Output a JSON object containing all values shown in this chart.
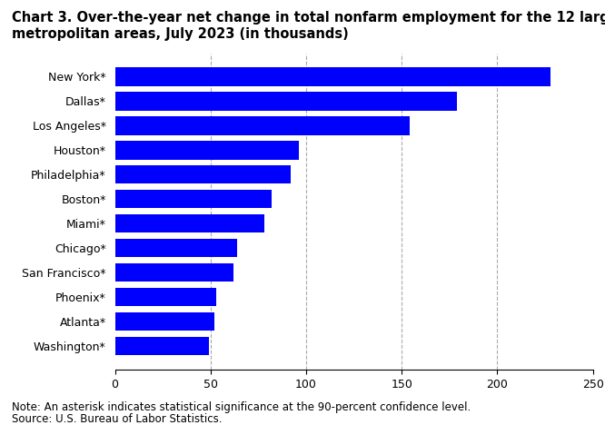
{
  "title_line1": "Chart 3. Over-the-year net change in total nonfarm employment for the 12 largest",
  "title_line2": "metropolitan areas, July 2023 (in thousands)",
  "categories": [
    "Washington*",
    "Atlanta*",
    "Phoenix*",
    "San Francisco*",
    "Chicago*",
    "Miami*",
    "Boston*",
    "Philadelphia*",
    "Houston*",
    "Los Angeles*",
    "Dallas*",
    "New York*"
  ],
  "values": [
    49,
    52,
    53,
    62,
    64,
    78,
    82,
    92,
    96,
    154,
    179,
    228
  ],
  "bar_color": "#0000ff",
  "xlim": [
    0,
    250
  ],
  "xticks": [
    0,
    50,
    100,
    150,
    200,
    250
  ],
  "grid_ticks": [
    50,
    100,
    150,
    200
  ],
  "grid_color": "#aaaaaa",
  "background_color": "#ffffff",
  "note_line1": "Note: An asterisk indicates statistical significance at the 90-percent confidence level.",
  "note_line2": "Source: U.S. Bureau of Labor Statistics.",
  "title_fontsize": 10.5,
  "tick_fontsize": 9,
  "note_fontsize": 8.5,
  "bar_height": 0.75
}
